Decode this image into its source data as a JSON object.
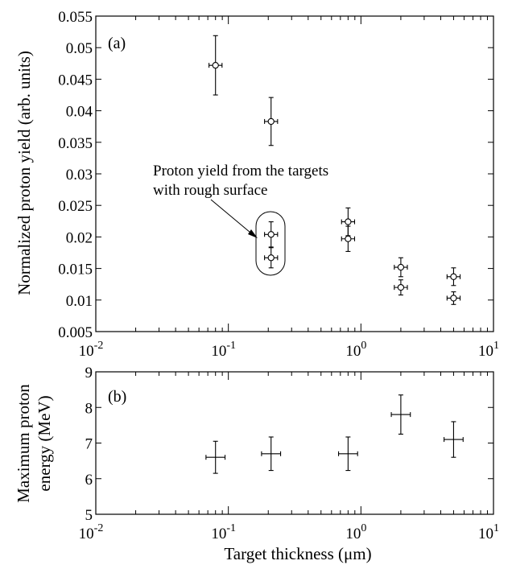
{
  "chart_data": [
    {
      "panel": "(a)",
      "type": "scatter",
      "xscale": "log",
      "xlim": [
        0.01,
        10
      ],
      "ylim": [
        0.005,
        0.055
      ],
      "ylabel": "Normalized proton yield (arb. units)",
      "xlabel": "",
      "grid": false,
      "x_ticks": [
        {
          "value": 0.01,
          "base": "10",
          "exp": "-2"
        },
        {
          "value": 0.1,
          "base": "10",
          "exp": "-1"
        },
        {
          "value": 1,
          "base": "10",
          "exp": "0"
        },
        {
          "value": 10,
          "base": "10",
          "exp": "1"
        }
      ],
      "y_ticks": [
        "0.005",
        "0.01",
        "0.015",
        "0.02",
        "0.025",
        "0.03",
        "0.035",
        "0.04",
        "0.045",
        "0.05",
        "0.055"
      ],
      "points": [
        {
          "x": 0.08,
          "y": 0.0472,
          "yerr": 0.0047,
          "xerr_factor": 1.12
        },
        {
          "x": 0.21,
          "y": 0.0383,
          "yerr": 0.0038,
          "xerr_factor": 1.12
        },
        {
          "x": 0.21,
          "y": 0.0204,
          "yerr": 0.002,
          "xerr_factor": 1.12
        },
        {
          "x": 0.21,
          "y": 0.0167,
          "yerr": 0.0016,
          "xerr_factor": 1.12
        },
        {
          "x": 0.8,
          "y": 0.0224,
          "yerr": 0.0022,
          "xerr_factor": 1.12
        },
        {
          "x": 0.8,
          "y": 0.0197,
          "yerr": 0.002,
          "xerr_factor": 1.12
        },
        {
          "x": 2.0,
          "y": 0.0152,
          "yerr": 0.0015,
          "xerr_factor": 1.12
        },
        {
          "x": 2.0,
          "y": 0.012,
          "yerr": 0.0012,
          "xerr_factor": 1.12
        },
        {
          "x": 5.0,
          "y": 0.0137,
          "yerr": 0.0014,
          "xerr_factor": 1.12
        },
        {
          "x": 5.0,
          "y": 0.0103,
          "yerr": 0.001,
          "xerr_factor": 1.12
        }
      ],
      "annotation": {
        "lines": [
          "Proton yield from the targets",
          "with rough surface"
        ]
      }
    },
    {
      "panel": "(b)",
      "type": "scatter",
      "xscale": "log",
      "xlim": [
        0.01,
        10
      ],
      "ylim": [
        5,
        9
      ],
      "ylabel": [
        "Maximum proton",
        "energy (MeV)"
      ],
      "xlabel": "Target thickness  (μm)",
      "grid": false,
      "x_ticks": [
        {
          "value": 0.01,
          "base": "10",
          "exp": "-2"
        },
        {
          "value": 0.1,
          "base": "10",
          "exp": "-1"
        },
        {
          "value": 1,
          "base": "10",
          "exp": "0"
        },
        {
          "value": 10,
          "base": "10",
          "exp": "1"
        }
      ],
      "y_ticks": [
        "5",
        "6",
        "7",
        "8",
        "9"
      ],
      "points": [
        {
          "x": 0.08,
          "y": 6.6,
          "yerr": 0.45,
          "xerr_factor": 1.18
        },
        {
          "x": 0.21,
          "y": 6.7,
          "yerr": 0.47,
          "xerr_factor": 1.18
        },
        {
          "x": 0.8,
          "y": 6.7,
          "yerr": 0.47,
          "xerr_factor": 1.18
        },
        {
          "x": 2.0,
          "y": 7.8,
          "yerr": 0.55,
          "xerr_factor": 1.18
        },
        {
          "x": 5.0,
          "y": 7.1,
          "yerr": 0.5,
          "xerr_factor": 1.18
        }
      ]
    }
  ]
}
